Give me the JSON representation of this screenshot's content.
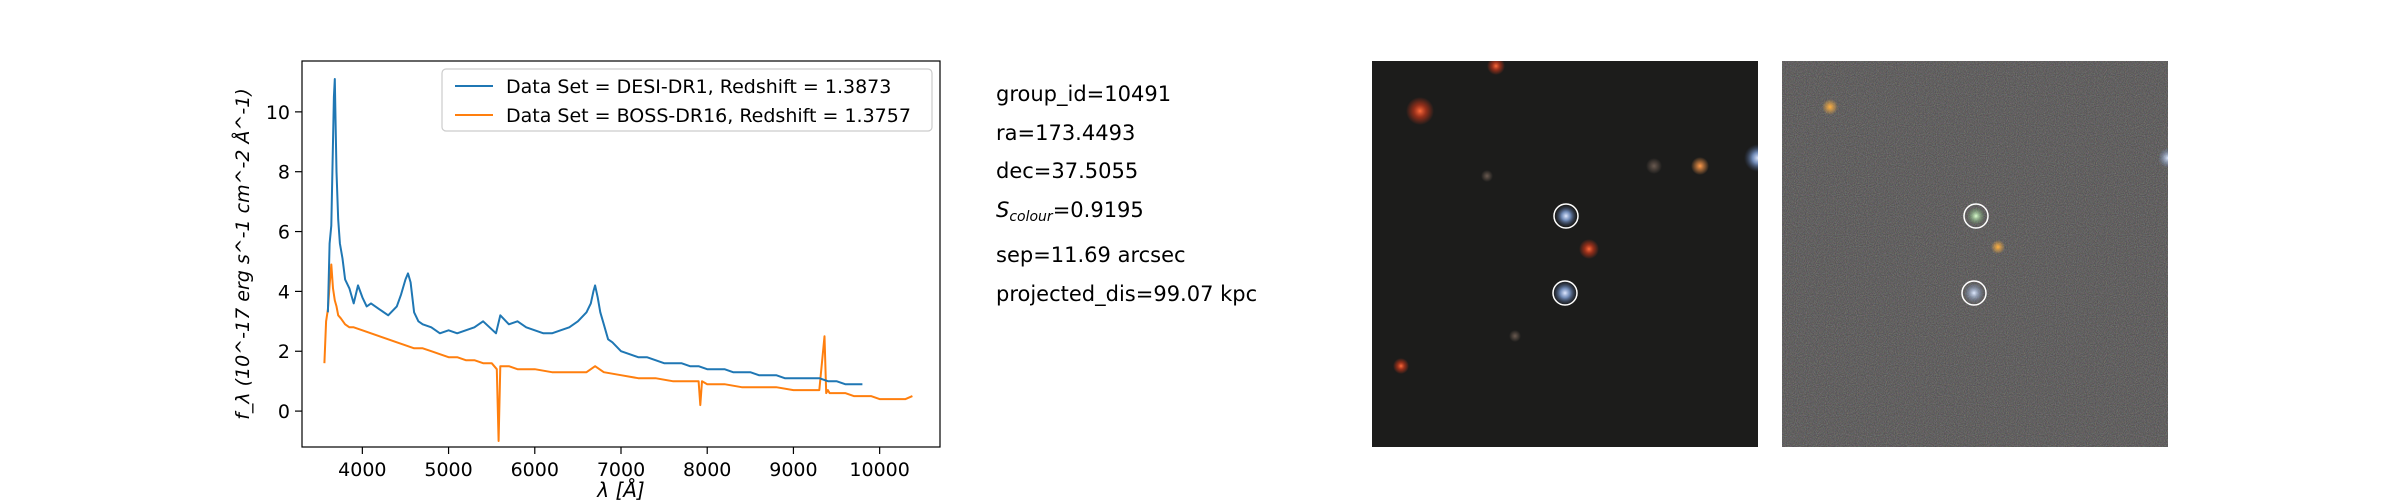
{
  "chart_data": {
    "type": "line",
    "xlabel": "λ [Å]",
    "ylabel": "f_λ (10^-17 erg s^-1 cm^-2 Å^-1)",
    "xlim": [
      3300,
      10700
    ],
    "ylim": [
      -1.2,
      11.7
    ],
    "x_ticks": [
      4000,
      5000,
      6000,
      7000,
      8000,
      9000,
      10000
    ],
    "y_ticks": [
      0,
      2,
      4,
      6,
      8,
      10
    ],
    "grid": false,
    "legend_position": "top-right",
    "series": [
      {
        "name": "Data Set = DESI-DR1, Redshift = 1.3873",
        "color": "#1f77b4",
        "x": [
          3600,
          3620,
          3640,
          3660,
          3670,
          3680,
          3690,
          3700,
          3720,
          3740,
          3770,
          3800,
          3850,
          3900,
          3950,
          4000,
          4050,
          4100,
          4200,
          4300,
          4400,
          4450,
          4500,
          4530,
          4560,
          4600,
          4650,
          4700,
          4800,
          4900,
          5000,
          5100,
          5200,
          5300,
          5400,
          5550,
          5600,
          5700,
          5800,
          5900,
          6000,
          6100,
          6200,
          6300,
          6400,
          6500,
          6600,
          6650,
          6680,
          6700,
          6730,
          6760,
          6800,
          6850,
          6900,
          7000,
          7100,
          7200,
          7300,
          7400,
          7500,
          7600,
          7700,
          7800,
          7900,
          8000,
          8100,
          8200,
          8300,
          8400,
          8500,
          8600,
          8700,
          8800,
          8900,
          9000,
          9100,
          9200,
          9300,
          9400,
          9500,
          9600,
          9700,
          9800
        ],
        "y": [
          3.3,
          5.6,
          6.2,
          9.0,
          10.5,
          11.1,
          9.6,
          8.0,
          6.4,
          5.6,
          5.1,
          4.4,
          4.1,
          3.6,
          4.2,
          3.8,
          3.5,
          3.6,
          3.4,
          3.2,
          3.5,
          3.9,
          4.4,
          4.6,
          4.3,
          3.3,
          3.0,
          2.9,
          2.8,
          2.6,
          2.7,
          2.6,
          2.7,
          2.8,
          3.0,
          2.6,
          3.2,
          2.9,
          3.0,
          2.8,
          2.7,
          2.6,
          2.6,
          2.7,
          2.8,
          3.0,
          3.3,
          3.6,
          4.0,
          4.2,
          3.8,
          3.3,
          2.9,
          2.4,
          2.3,
          2.0,
          1.9,
          1.8,
          1.8,
          1.7,
          1.6,
          1.6,
          1.6,
          1.5,
          1.5,
          1.4,
          1.4,
          1.4,
          1.3,
          1.3,
          1.3,
          1.2,
          1.2,
          1.2,
          1.1,
          1.1,
          1.1,
          1.1,
          1.1,
          1.0,
          1.0,
          0.9,
          0.9,
          0.9
        ]
      },
      {
        "name": "Data Set = BOSS-DR16, Redshift = 1.3757",
        "color": "#ff7f0e",
        "x": [
          3560,
          3580,
          3600,
          3620,
          3640,
          3660,
          3680,
          3700,
          3720,
          3750,
          3800,
          3850,
          3900,
          4000,
          4100,
          4200,
          4300,
          4400,
          4500,
          4600,
          4700,
          4800,
          4900,
          5000,
          5100,
          5200,
          5300,
          5400,
          5500,
          5560,
          5580,
          5600,
          5700,
          5800,
          6000,
          6200,
          6400,
          6600,
          6700,
          6800,
          7000,
          7200,
          7400,
          7600,
          7800,
          7900,
          7920,
          7940,
          8000,
          8200,
          8400,
          8600,
          8800,
          9000,
          9200,
          9300,
          9360,
          9380,
          9400,
          9420,
          9500,
          9600,
          9700,
          9800,
          9900,
          10000,
          10100,
          10200,
          10300,
          10380
        ],
        "y": [
          1.6,
          3.0,
          3.4,
          4.2,
          4.9,
          4.1,
          3.7,
          3.5,
          3.2,
          3.1,
          2.9,
          2.8,
          2.8,
          2.7,
          2.6,
          2.5,
          2.4,
          2.3,
          2.2,
          2.1,
          2.1,
          2.0,
          1.9,
          1.8,
          1.8,
          1.7,
          1.7,
          1.6,
          1.6,
          1.4,
          -1.0,
          1.5,
          1.5,
          1.4,
          1.4,
          1.3,
          1.3,
          1.3,
          1.5,
          1.3,
          1.2,
          1.1,
          1.1,
          1.0,
          1.0,
          1.0,
          0.2,
          1.0,
          0.9,
          0.9,
          0.8,
          0.8,
          0.8,
          0.7,
          0.7,
          0.7,
          2.5,
          0.6,
          0.7,
          0.6,
          0.6,
          0.6,
          0.5,
          0.5,
          0.5,
          0.4,
          0.4,
          0.4,
          0.4,
          0.5
        ]
      }
    ]
  },
  "info": {
    "group_id": "group_id=10491",
    "ra": "ra=173.4493",
    "dec": "dec=37.5055",
    "s_colour_symbol": "S",
    "s_colour_sub": "colour",
    "s_colour_value": "=0.9195",
    "sep": "sep=11.69 arcsec",
    "projected_dis": "projected_dis=99.07 kpc"
  },
  "colors": {
    "desi": "#1f77b4",
    "boss": "#ff7f0e"
  }
}
